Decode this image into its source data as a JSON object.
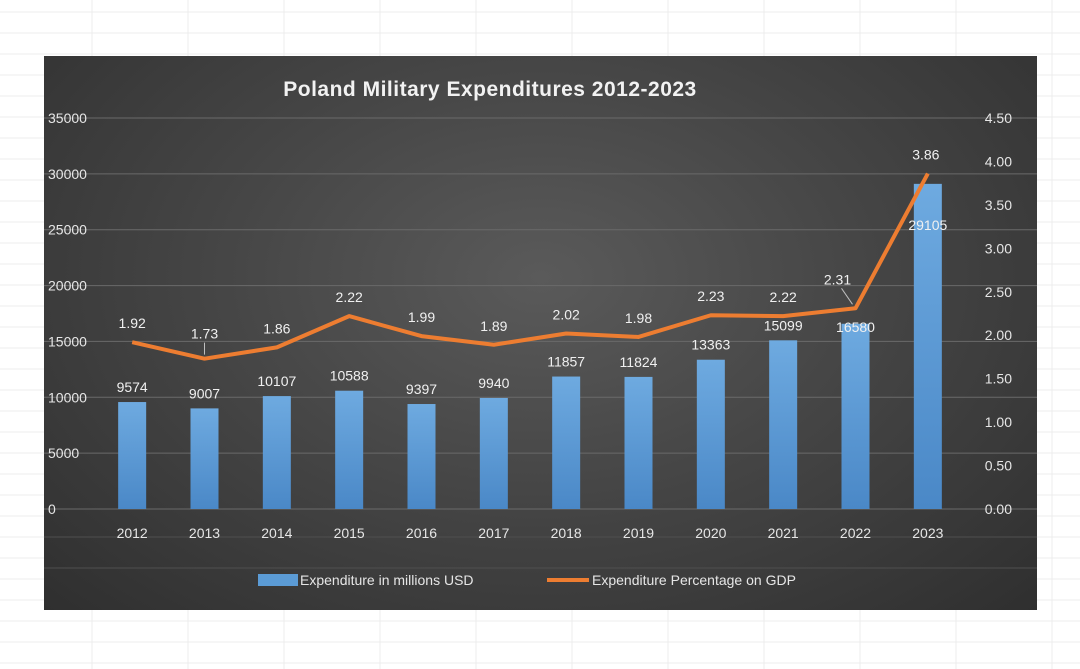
{
  "chart_data": {
    "type": "bar+line",
    "title": "Poland Military Expenditures 2012-2023",
    "categories": [
      "2012",
      "2013",
      "2014",
      "2015",
      "2016",
      "2017",
      "2018",
      "2019",
      "2020",
      "2021",
      "2022",
      "2023"
    ],
    "series": [
      {
        "name": "Expenditure in millions USD",
        "type": "bar",
        "axis": "left",
        "color": "#5b9bd5",
        "values": [
          9574,
          9007,
          10107,
          10588,
          9397,
          9940,
          11857,
          11824,
          13363,
          15099,
          16580,
          29105
        ],
        "labels": [
          "9574",
          "9007",
          "10107",
          "10588",
          "9397",
          "9940",
          "11857",
          "11824",
          "13363",
          "15099",
          "16580",
          "29105"
        ]
      },
      {
        "name": "Expenditure Percentage on GDP",
        "type": "line",
        "axis": "right",
        "color": "#ed7d31",
        "values": [
          1.92,
          1.73,
          1.86,
          2.22,
          1.99,
          1.89,
          2.02,
          1.98,
          2.23,
          2.22,
          2.31,
          3.86
        ],
        "labels": [
          "1.92",
          "1.73",
          "1.86",
          "2.22",
          "1.99",
          "1.89",
          "2.02",
          "1.98",
          "2.23",
          "2.22",
          "2.31",
          "3.86"
        ]
      }
    ],
    "y_left": {
      "ylim": [
        0,
        35000
      ],
      "ticks": [
        "0",
        "5000",
        "10000",
        "15000",
        "20000",
        "25000",
        "30000",
        "35000"
      ]
    },
    "y_right": {
      "ylim": [
        0,
        4.5
      ],
      "ticks": [
        "0.00",
        "0.50",
        "1.00",
        "1.50",
        "2.00",
        "2.50",
        "3.00",
        "3.50",
        "4.00",
        "4.50"
      ]
    },
    "grid": true,
    "legend": "bottom"
  }
}
